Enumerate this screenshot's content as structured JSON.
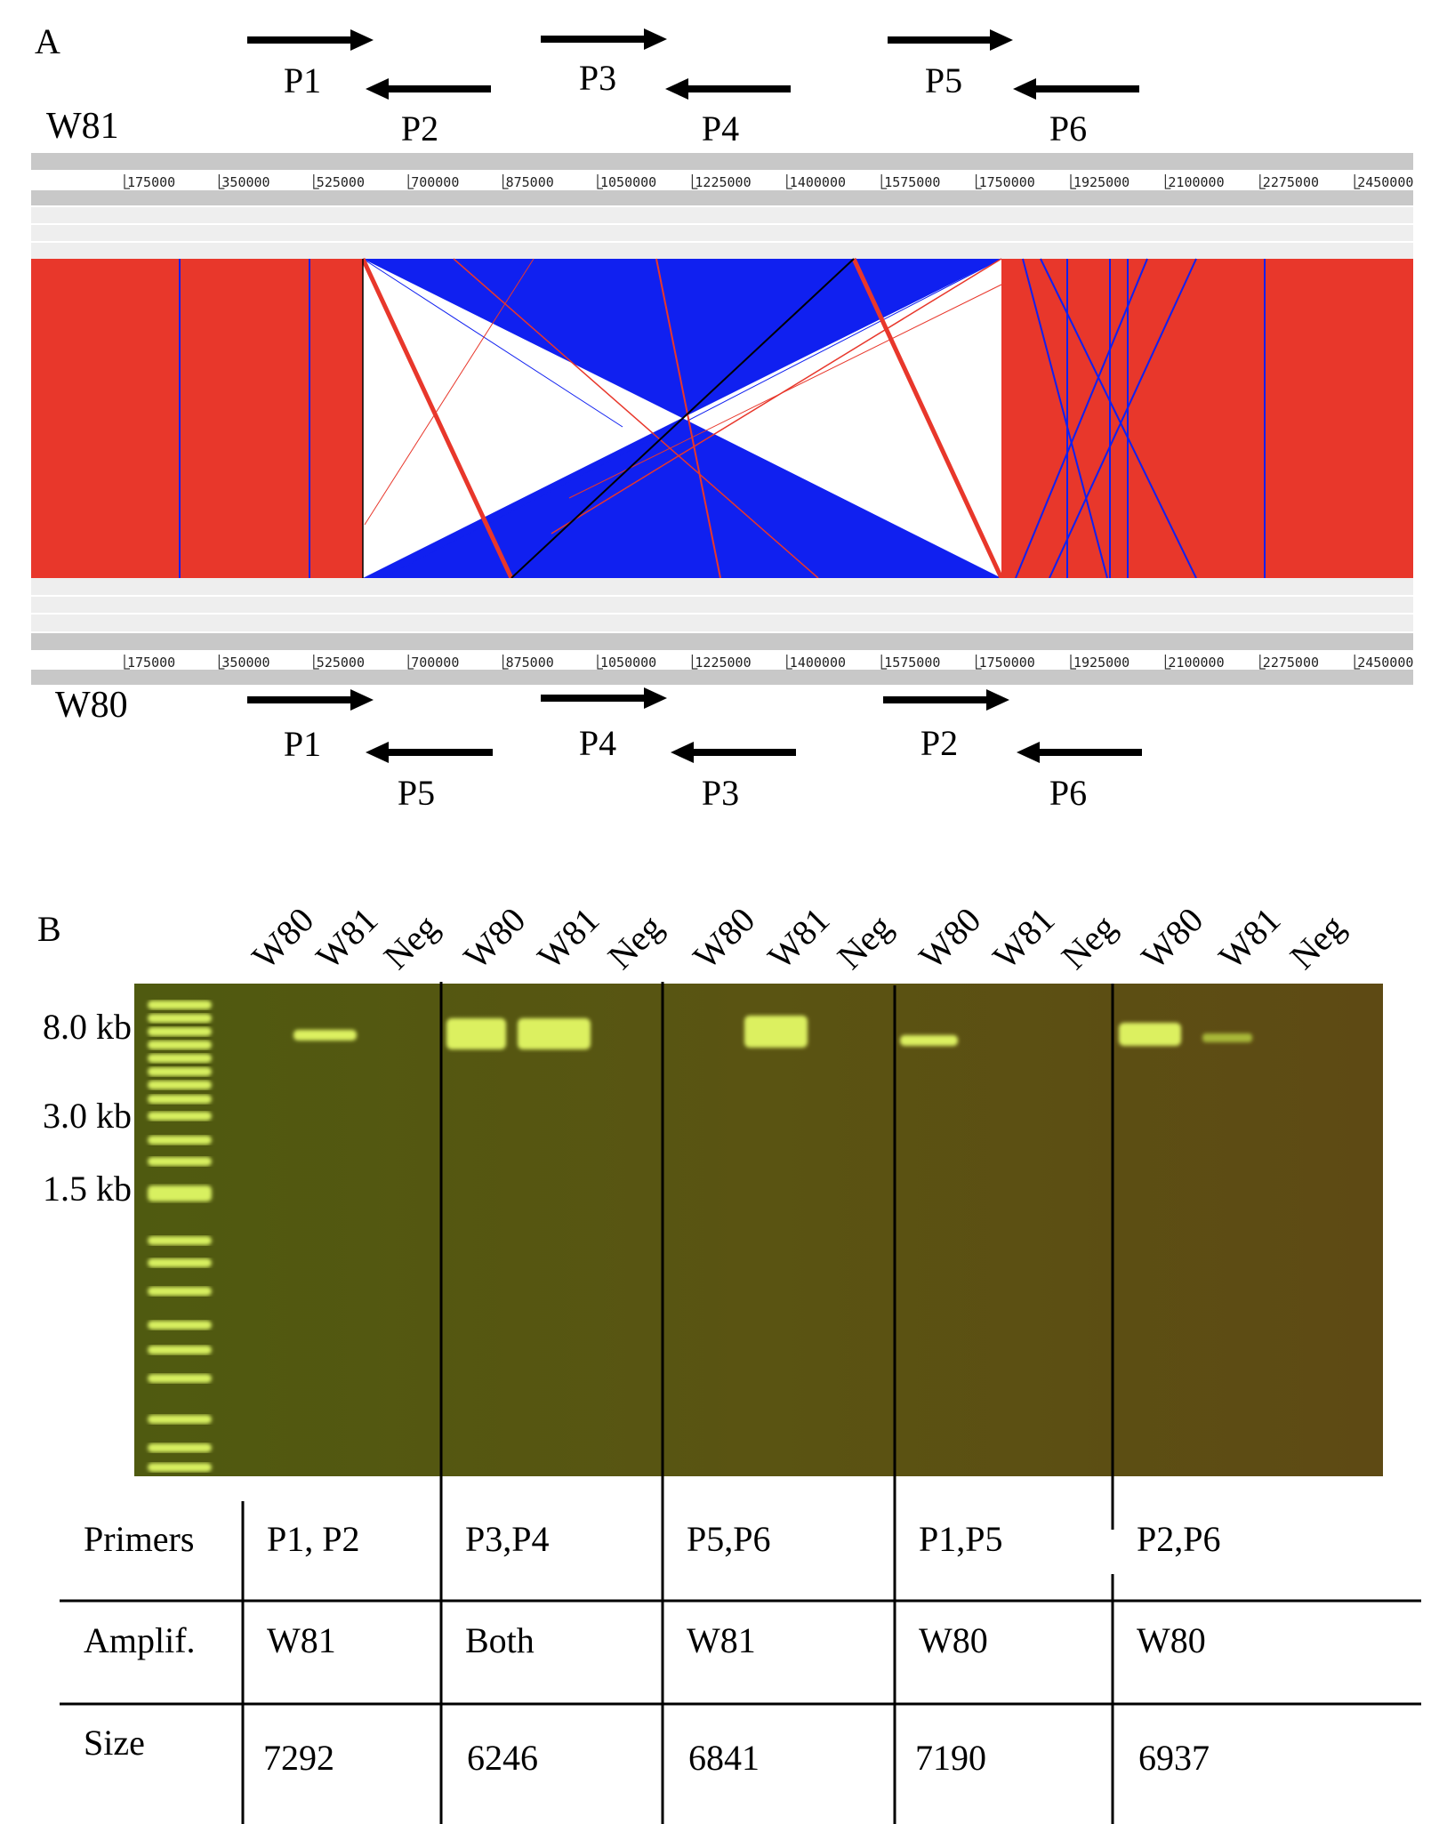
{
  "panel_a": {
    "label": "A",
    "top_genome": "W81",
    "bottom_genome": "W80",
    "ruler_ticks": [
      "175000",
      "350000",
      "525000",
      "700000",
      "875000",
      "1050000",
      "1225000",
      "1400000",
      "1575000",
      "1750000",
      "1925000",
      "2100000",
      "2275000",
      "2450000"
    ],
    "top_primers": [
      {
        "label": "P1",
        "direction": "forward"
      },
      {
        "label": "P2",
        "direction": "reverse"
      },
      {
        "label": "P3",
        "direction": "forward"
      },
      {
        "label": "P4",
        "direction": "reverse"
      },
      {
        "label": "P5",
        "direction": "forward"
      },
      {
        "label": "P6",
        "direction": "reverse"
      }
    ],
    "bottom_primers": [
      {
        "label": "P1",
        "direction": "forward"
      },
      {
        "label": "P5",
        "direction": "reverse"
      },
      {
        "label": "P4",
        "direction": "forward"
      },
      {
        "label": "P3",
        "direction": "reverse"
      },
      {
        "label": "P2",
        "direction": "forward"
      },
      {
        "label": "P6",
        "direction": "reverse"
      }
    ],
    "colors": {
      "collinear": "#e8372b",
      "inverted": "#1020f0",
      "track_dark": "#c8c8c8",
      "track_light": "#eeeeee"
    }
  },
  "panel_b": {
    "label": "B",
    "lane_labels": [
      "W80",
      "W81",
      "Neg",
      "W80",
      "W81",
      "Neg",
      "W80",
      "W81",
      "Neg",
      "W80",
      "W81",
      "Neg",
      "W80",
      "W81",
      "Neg"
    ],
    "size_markers": [
      "8.0 kb",
      "3.0 kb",
      "1.5 kb"
    ],
    "gel_colors": {
      "background": "#5a5410",
      "band": "#d8f060"
    },
    "table": {
      "row_headers": [
        "Primers",
        "Amplif.",
        "Size"
      ],
      "columns": [
        {
          "primers": "P1, P2",
          "amplified": "W81",
          "size": "7292"
        },
        {
          "primers": "P3,P4",
          "amplified": "Both",
          "size": "6246"
        },
        {
          "primers": "P5,P6",
          "amplified": "W81",
          "size": "6841"
        },
        {
          "primers": "P1,P5",
          "amplified": "W80",
          "size": "7190"
        },
        {
          "primers": "P2,P6",
          "amplified": "W80",
          "size": "6937"
        }
      ]
    }
  }
}
